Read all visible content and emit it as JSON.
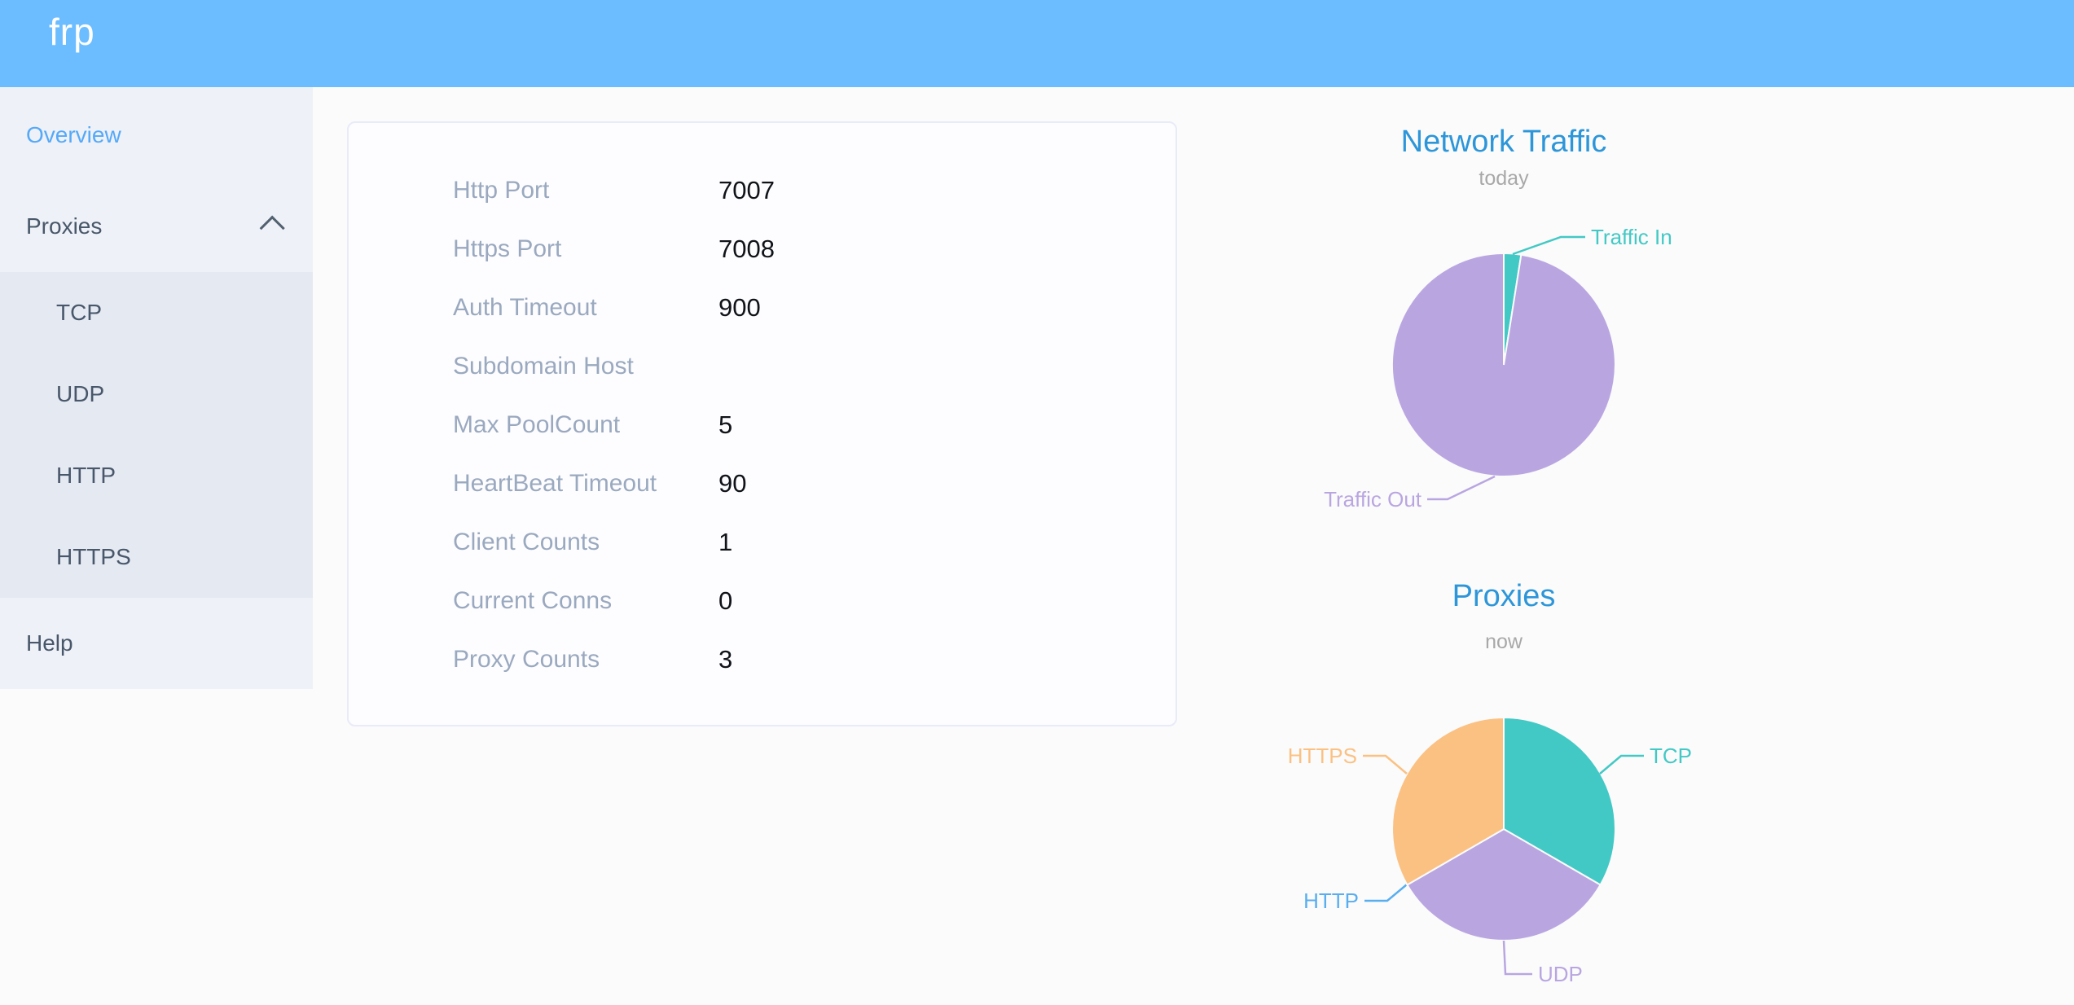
{
  "header": {
    "logo": "frp"
  },
  "sidebar": {
    "items": [
      {
        "label": "Overview",
        "active": true
      },
      {
        "label": "Proxies",
        "expanded": true
      },
      {
        "label": "TCP"
      },
      {
        "label": "UDP"
      },
      {
        "label": "HTTP"
      },
      {
        "label": "HTTPS"
      },
      {
        "label": "Help"
      }
    ]
  },
  "overview": {
    "rows": [
      {
        "label": "Http Port",
        "value": "7007"
      },
      {
        "label": "Https Port",
        "value": "7008"
      },
      {
        "label": "Auth Timeout",
        "value": "900"
      },
      {
        "label": "Subdomain Host",
        "value": ""
      },
      {
        "label": "Max PoolCount",
        "value": "5"
      },
      {
        "label": "HeartBeat Timeout",
        "value": "90"
      },
      {
        "label": "Client Counts",
        "value": "1"
      },
      {
        "label": "Current Conns",
        "value": "0"
      },
      {
        "label": "Proxy Counts",
        "value": "3"
      }
    ]
  },
  "chart_data": [
    {
      "type": "pie",
      "title": "Network Traffic",
      "subtitle": "today",
      "legend_position": "none",
      "slices": [
        {
          "label": "Traffic In",
          "value": 2.5,
          "color": "#43c9c5"
        },
        {
          "label": "Traffic Out",
          "value": 97.5,
          "color": "#b9a6e1"
        }
      ]
    },
    {
      "type": "pie",
      "title": "Proxies",
      "subtitle": "now",
      "legend_position": "none",
      "slices": [
        {
          "label": "TCP",
          "value": 1,
          "color": "#43c9c5"
        },
        {
          "label": "UDP",
          "value": 1,
          "color": "#b9a6e1"
        },
        {
          "label": "HTTP",
          "value": 0,
          "color": "#59aef0"
        },
        {
          "label": "HTTPS",
          "value": 1,
          "color": "#fbc183"
        }
      ]
    }
  ]
}
